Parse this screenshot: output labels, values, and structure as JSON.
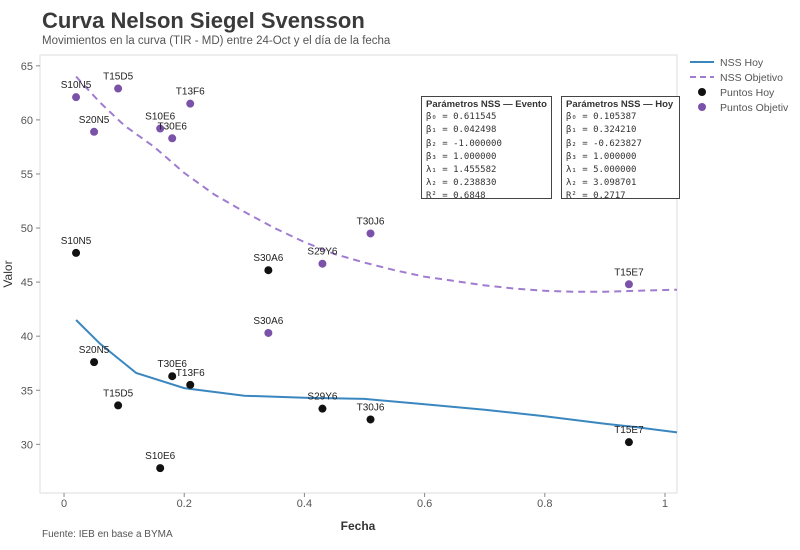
{
  "header": {
    "title": "Curva Nelson Siegel Svensson",
    "subtitle": "Movimientos en la curva (TIR - MD) entre 24-Oct y el día de la fecha"
  },
  "footer": {
    "source": "Fuente: IEB en base a BYMA"
  },
  "colors": {
    "hoy_line": "#3a87c0",
    "objetivo_line": "#a07cd0",
    "hoy_points": "#111111",
    "objetivo_points": "#7a52a8"
  },
  "chart_data": {
    "type": "scatter",
    "xlabel": "Fecha",
    "ylabel": "Valor",
    "xlim": [
      -0.04,
      1.02
    ],
    "ylim": [
      25.5,
      66
    ],
    "x_ticks": [
      0,
      0.2,
      0.4,
      0.6,
      0.8,
      1
    ],
    "x_tick_labels": [
      "0",
      "0.2",
      "0.4",
      "0.6",
      "0.8",
      "1"
    ],
    "y_ticks": [
      30,
      35,
      40,
      45,
      50,
      55,
      60,
      65
    ],
    "y_tick_labels": [
      "30",
      "35",
      "40",
      "45",
      "50",
      "55",
      "60",
      "65"
    ],
    "legend": [
      {
        "label": "NSS Hoy",
        "kind": "line-solid"
      },
      {
        "label": "NSS Objetivo",
        "kind": "line-dashed"
      },
      {
        "label": "Puntos Hoy",
        "kind": "dot-black"
      },
      {
        "label": "Puntos Objetiv",
        "kind": "dot-purple"
      }
    ],
    "series": [
      {
        "name": "NSS Hoy",
        "kind": "line",
        "x": [
          0.02,
          0.06,
          0.12,
          0.2,
          0.3,
          0.4,
          0.5,
          0.6,
          0.7,
          0.8,
          0.9,
          0.95,
          1.02
        ],
        "y": [
          41.5,
          39.3,
          36.6,
          35.2,
          34.5,
          34.3,
          34.2,
          33.7,
          33.2,
          32.6,
          31.9,
          31.6,
          31.1
        ]
      },
      {
        "name": "NSS Objetivo",
        "kind": "dashed-line",
        "x": [
          0.02,
          0.06,
          0.1,
          0.15,
          0.2,
          0.25,
          0.3,
          0.35,
          0.4,
          0.45,
          0.5,
          0.55,
          0.6,
          0.65,
          0.7,
          0.75,
          0.8,
          0.85,
          0.9,
          0.95,
          1.02
        ],
        "y": [
          64.0,
          61.6,
          59.5,
          57.5,
          55.1,
          53.1,
          51.5,
          50.0,
          48.7,
          47.6,
          46.8,
          46.1,
          45.5,
          45.1,
          44.7,
          44.4,
          44.2,
          44.1,
          44.1,
          44.2,
          44.3
        ]
      },
      {
        "name": "Puntos Hoy",
        "kind": "points",
        "points": [
          {
            "label": "S10N5",
            "x": 0.02,
            "y": 47.7
          },
          {
            "label": "S20N5",
            "x": 0.05,
            "y": 37.6
          },
          {
            "label": "T15D5",
            "x": 0.09,
            "y": 33.6
          },
          {
            "label": "S10E6",
            "x": 0.16,
            "y": 27.8
          },
          {
            "label": "T30E6",
            "x": 0.18,
            "y": 36.3
          },
          {
            "label": "T13F6",
            "x": 0.21,
            "y": 35.5
          },
          {
            "label": "S30A6",
            "x": 0.34,
            "y": 46.1
          },
          {
            "label": "S29Y6",
            "x": 0.43,
            "y": 33.3
          },
          {
            "label": "T30J6",
            "x": 0.51,
            "y": 32.3
          },
          {
            "label": "T15E7",
            "x": 0.94,
            "y": 30.2
          }
        ]
      },
      {
        "name": "Puntos Objetiv",
        "kind": "points",
        "points": [
          {
            "label": "S10N5",
            "x": 0.02,
            "y": 62.1
          },
          {
            "label": "S20N5",
            "x": 0.05,
            "y": 58.9
          },
          {
            "label": "T15D5",
            "x": 0.09,
            "y": 62.9
          },
          {
            "label": "S10E6",
            "x": 0.16,
            "y": 59.2
          },
          {
            "label": "T30E6",
            "x": 0.18,
            "y": 58.3
          },
          {
            "label": "T13F6",
            "x": 0.21,
            "y": 61.5
          },
          {
            "label": "S30A6",
            "x": 0.34,
            "y": 40.3
          },
          {
            "label": "S29Y6",
            "x": 0.43,
            "y": 46.7
          },
          {
            "label": "T30J6",
            "x": 0.51,
            "y": 49.5
          },
          {
            "label": "T15E7",
            "x": 0.94,
            "y": 44.8
          }
        ]
      }
    ]
  },
  "params": {
    "evento": {
      "title": "Parámetros NSS — Evento",
      "lines": [
        "β₀ = 0.611545",
        "β₁ = 0.042498",
        "β₂ = -1.000000",
        "β₃ = 1.000000",
        "λ₁ = 1.455582",
        "λ₂ = 0.238830",
        "R² = 0.6848"
      ]
    },
    "hoy": {
      "title": "Parámetros NSS — Hoy",
      "lines": [
        "β₀ = 0.105387",
        "β₁ = 0.324210",
        "β₂ = -0.623827",
        "β₃ = 1.000000",
        "λ₁ = 5.000000",
        "λ₂ = 3.098701",
        "R² = 0.2717"
      ]
    }
  }
}
